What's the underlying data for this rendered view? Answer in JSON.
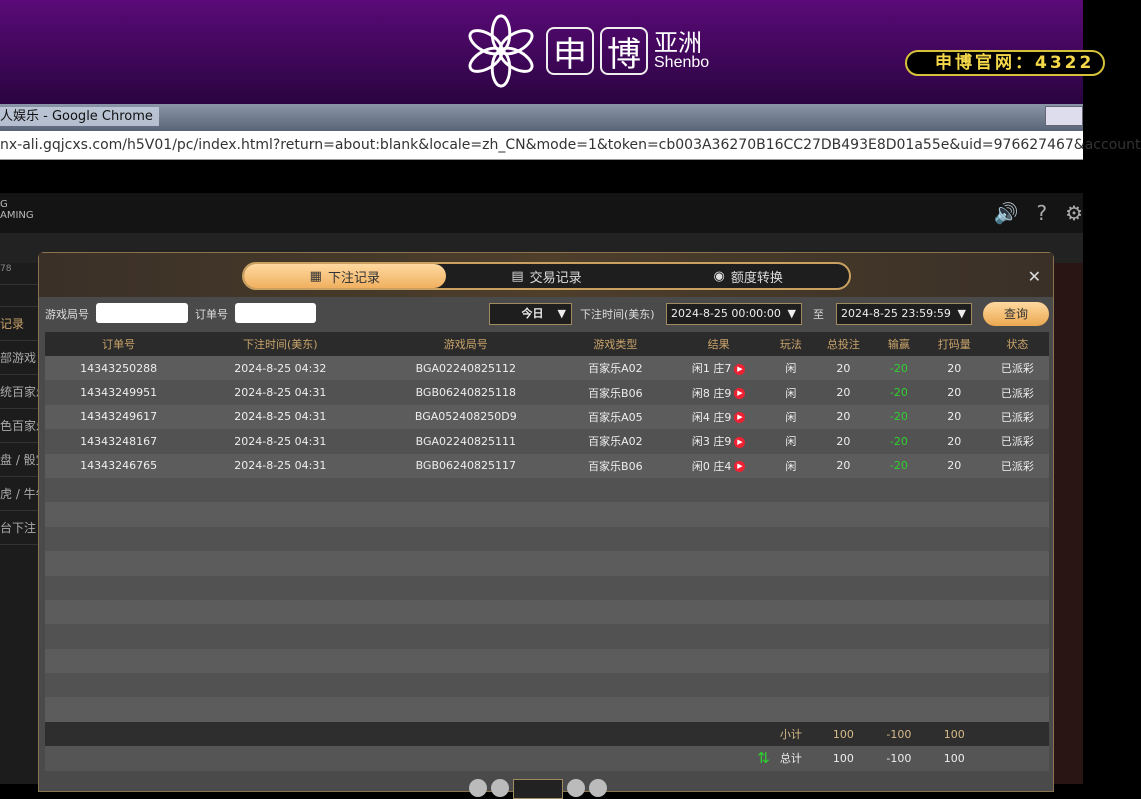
{
  "banner": {
    "logo_char1": "申",
    "logo_char2": "博",
    "logo_cn": "亚洲",
    "logo_en": "Shenbo",
    "site_label": "申博官网：4322"
  },
  "browser": {
    "title": "人娱乐 - Google Chrome",
    "url": "nx-ali.gqjcxs.com/h5V01/pc/index.html?return=about:blank&locale=zh_CN&mode=1&token=cb003A36270B16CC27DB493E8D01a55e&uid=976627467&account"
  },
  "app": {
    "brand_line1": "G",
    "brand_line2": "AMING",
    "user_suffix": "78",
    "icons": [
      "speaker-icon",
      "help-icon",
      "gear-icon"
    ]
  },
  "sidebar": {
    "items": [
      "记录",
      "部游戏",
      "统百家乐",
      "色百家乐",
      "盘 / 骰宝",
      "虎 / 牛牛",
      "台下注"
    ]
  },
  "modal": {
    "tabs": [
      {
        "label": "下注记录",
        "icon": "calendar-icon",
        "active": true
      },
      {
        "label": "交易记录",
        "icon": "clipboard-icon"
      },
      {
        "label": "额度转换",
        "icon": "coins-icon"
      }
    ],
    "filter": {
      "round_label": "游戏局号",
      "round_value": "",
      "order_label": "订单号",
      "order_value": "",
      "range_select": "今日",
      "time_label": "下注时间(美东)",
      "start": "2024-8-25 00:00:00",
      "to_label": "至",
      "end": "2024-8-25 23:59:59",
      "query_button": "查询"
    },
    "columns": [
      "订单号",
      "下注时间(美东)",
      "游戏局号",
      "游戏类型",
      "结果",
      "玩法",
      "总投注",
      "输赢",
      "打码量",
      "状态"
    ],
    "rows": [
      [
        "14343250288",
        "2024-8-25 04:32",
        "BGA02240825112",
        "百家乐A02",
        "闲1 庄7",
        "闲",
        "20",
        "-20",
        "20",
        "已派彩"
      ],
      [
        "14343249951",
        "2024-8-25 04:31",
        "BGB06240825118",
        "百家乐B06",
        "闲8 庄9",
        "闲",
        "20",
        "-20",
        "20",
        "已派彩"
      ],
      [
        "14343249617",
        "2024-8-25 04:31",
        "BGA052408250D9",
        "百家乐A05",
        "闲4 庄9",
        "闲",
        "20",
        "-20",
        "20",
        "已派彩"
      ],
      [
        "14343248167",
        "2024-8-25 04:31",
        "BGA02240825111",
        "百家乐A02",
        "闲3 庄9",
        "闲",
        "20",
        "-20",
        "20",
        "已派彩"
      ],
      [
        "14343246765",
        "2024-8-25 04:31",
        "BGB06240825117",
        "百家乐B06",
        "闲0 庄4",
        "闲",
        "20",
        "-20",
        "20",
        "已派彩"
      ]
    ],
    "subtotal": {
      "label": "小计",
      "bet": "100",
      "winloss": "-100",
      "valid": "100"
    },
    "total": {
      "label": "总计",
      "bet": "100",
      "winloss": "-100",
      "valid": "100"
    }
  },
  "colors": {
    "accent": "#f0b060",
    "negative": "#2ed12e",
    "banner": "#5a0a78"
  }
}
